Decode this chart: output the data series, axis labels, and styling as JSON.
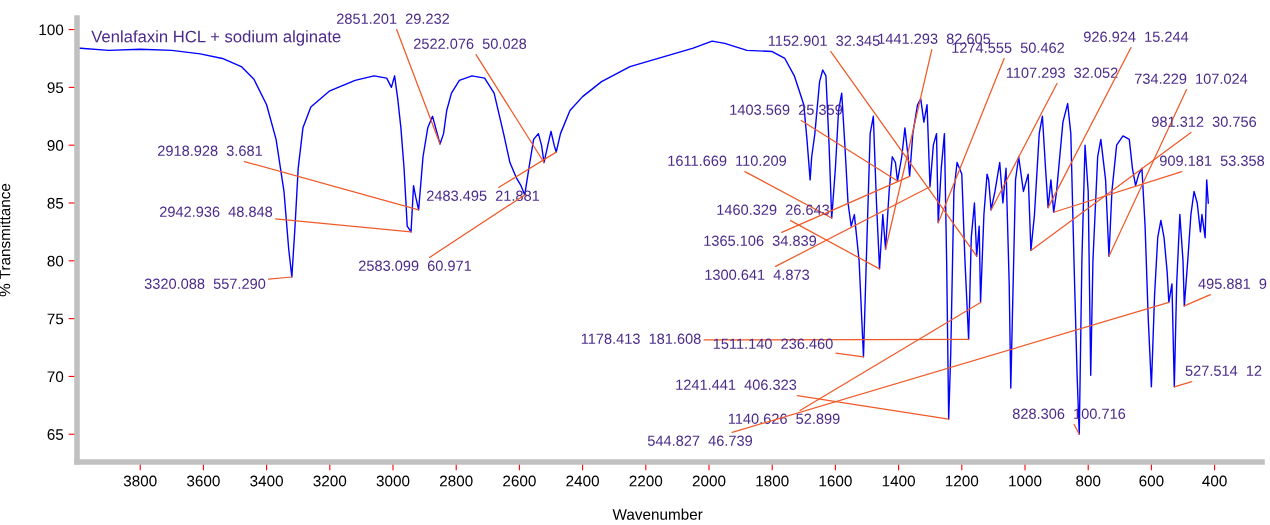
{
  "chart_data": {
    "type": "line",
    "title": "Venlafaxin HCL + sodium alginate",
    "xlabel": "Wavenumber",
    "ylabel": "% Transmittance",
    "xlim": [
      4000,
      250
    ],
    "xticks": [
      3800,
      3600,
      3400,
      3200,
      3000,
      2800,
      2600,
      2400,
      2200,
      2000,
      1800,
      1600,
      1400,
      1200,
      1000,
      800,
      600,
      400
    ],
    "ylim": [
      62.6,
      101
    ],
    "yticks": [
      65,
      70,
      75,
      80,
      85,
      90,
      95,
      100
    ],
    "grid": false,
    "legend": false,
    "marker": "none",
    "line_style": "solid",
    "series": [
      {
        "color": "#0000ff",
        "x": [
          3998,
          3900,
          3800,
          3700,
          3610,
          3540,
          3480,
          3440,
          3400,
          3370,
          3345,
          3330,
          3320.088,
          3310,
          3300,
          3285,
          3260,
          3200,
          3120,
          3060,
          3020,
          3005,
          2995,
          2985,
          2975,
          2965,
          2955,
          2942.936,
          2935,
          2928,
          2918.928,
          2905,
          2890,
          2875,
          2865,
          2851.201,
          2840,
          2830,
          2815,
          2790,
          2750,
          2710,
          2680,
          2650,
          2630,
          2610,
          2595,
          2583.099,
          2570,
          2555,
          2540,
          2530,
          2522.076,
          2510,
          2500,
          2490,
          2483.495,
          2470,
          2440,
          2400,
          2340,
          2250,
          2150,
          2050,
          1990,
          1950,
          1880,
          1800,
          1760,
          1730,
          1700,
          1690,
          1680,
          1675,
          1665,
          1650,
          1640,
          1630,
          1620,
          1611.669,
          1600,
          1590,
          1580,
          1570,
          1560,
          1550,
          1540,
          1525,
          1511.14,
          1500,
          1490,
          1480,
          1470,
          1460.329,
          1450,
          1441.293,
          1430,
          1420,
          1410,
          1403.569,
          1390,
          1380,
          1370,
          1365.106,
          1355,
          1340,
          1330,
          1320,
          1310,
          1300.641,
          1290,
          1280,
          1274.555,
          1265,
          1255,
          1248,
          1241.441,
          1235,
          1225,
          1215,
          1200,
          1190,
          1178.413,
          1170,
          1160,
          1152.901,
          1145,
          1140.626,
          1130,
          1120,
          1115,
          1107.293,
          1095,
          1080,
          1070,
          1060,
          1050,
          1045,
          1040,
          1030,
          1020,
          1005,
          990,
          981.312,
          970,
          955,
          945,
          935,
          926.924,
          918,
          909.181,
          900,
          880,
          865,
          855,
          845,
          835,
          828.306,
          820,
          810,
          800,
          792,
          785,
          770,
          760,
          745,
          734.229,
          725,
          710,
          690,
          670,
          660,
          650,
          640,
          630,
          620,
          610,
          600,
          590,
          580,
          570,
          560,
          550,
          544.827,
          535,
          527.514,
          520,
          510,
          500,
          495.881,
          485,
          475,
          465,
          455,
          445,
          440,
          430,
          425,
          420
        ],
        "values": [
          98.4,
          98.2,
          98.3,
          98.2,
          97.9,
          97.5,
          96.8,
          95.7,
          93.5,
          90.5,
          86,
          81,
          78.6,
          83,
          88,
          91.5,
          93.3,
          94.7,
          95.6,
          96.0,
          95.8,
          95.0,
          96.0,
          94,
          91.5,
          88,
          83,
          82.5,
          86.5,
          85.5,
          84.4,
          89,
          91.5,
          92.5,
          91.5,
          90.1,
          91,
          93,
          94.5,
          95.6,
          96.0,
          95.8,
          94.5,
          91,
          88.5,
          87.2,
          86.5,
          85.7,
          88,
          90.5,
          91,
          90,
          88.5,
          90,
          91.2,
          90,
          89.4,
          91,
          93,
          94.2,
          95.5,
          96.8,
          97.6,
          98.4,
          99.0,
          98.8,
          98.2,
          98.1,
          97.5,
          96.0,
          93.5,
          90.5,
          87,
          89,
          91,
          95.5,
          96.5,
          96,
          90,
          83.7,
          88,
          93,
          94.5,
          90,
          85,
          83,
          84,
          80,
          71.7,
          82,
          91,
          92.5,
          85,
          79.3,
          84,
          81.0,
          86,
          89,
          88.5,
          86.9,
          89,
          91.5,
          89,
          87.3,
          91,
          93.5,
          94,
          92,
          93.5,
          86.4,
          90,
          91,
          83.3,
          88,
          91,
          80,
          66.3,
          72,
          86,
          88.5,
          87.5,
          80,
          73.2,
          82,
          85,
          80.4,
          83,
          76.4,
          84,
          87.5,
          87,
          84.4,
          86,
          88.5,
          85,
          88,
          78,
          69.0,
          75,
          87,
          89,
          86,
          87.5,
          80.9,
          84,
          91,
          92.5,
          88,
          84.6,
          87,
          84.2,
          86,
          92,
          93.6,
          91,
          80,
          70,
          65.0,
          80,
          90,
          86,
          70.1,
          80,
          89,
          90.5,
          87,
          80.4,
          86,
          90,
          90.8,
          90.5,
          88,
          86.5,
          87.5,
          88,
          83,
          75,
          69.1,
          77,
          82,
          83.5,
          82,
          79,
          76.4,
          78,
          69.1,
          78,
          84,
          80,
          76.1,
          80,
          84,
          86,
          85,
          82.5,
          84,
          82,
          87,
          85
        ]
      }
    ],
    "annotations": [
      {
        "text": "3320.088  557.290",
        "x": 3320.088,
        "y": 78.6
      },
      {
        "text": "2942.936  48.848",
        "x": 2942.936,
        "y": 82.5
      },
      {
        "text": "2918.928  3.681",
        "x": 2918.928,
        "y": 84.4
      },
      {
        "text": "2851.201  29.232",
        "x": 2851.201,
        "y": 90.1
      },
      {
        "text": "2522.076  50.028",
        "x": 2522.076,
        "y": 88.5
      },
      {
        "text": "2483.495  21.881",
        "x": 2483.495,
        "y": 89.4
      },
      {
        "text": "2583.099  60.971",
        "x": 2583.099,
        "y": 85.7
      },
      {
        "text": "1611.669  110.209",
        "x": 1611.669,
        "y": 83.7
      },
      {
        "text": "1460.329  26.643",
        "x": 1460.329,
        "y": 79.3
      },
      {
        "text": "1365.106  34.839",
        "x": 1365.106,
        "y": 87.3
      },
      {
        "text": "1300.641  4.873",
        "x": 1300.641,
        "y": 86.4
      },
      {
        "text": "1403.569  25.359",
        "x": 1403.569,
        "y": 86.9
      },
      {
        "text": "1152.901  32.345",
        "x": 1152.901,
        "y": 80.4
      },
      {
        "text": "1441.293  82.605",
        "x": 1441.293,
        "y": 81.0
      },
      {
        "text": "1274.555  50.462",
        "x": 1274.555,
        "y": 83.3
      },
      {
        "text": "1107.293  32.052",
        "x": 1107.293,
        "y": 84.4
      },
      {
        "text": "926.924  15.244",
        "x": 926.924,
        "y": 84.6
      },
      {
        "text": "734.229  107.024",
        "x": 734.229,
        "y": 80.4
      },
      {
        "text": "981.312  30.756",
        "x": 981.312,
        "y": 80.9
      },
      {
        "text": "909.181  53.358",
        "x": 909.181,
        "y": 84.2
      },
      {
        "text": "495.881  9",
        "x": 495.881,
        "y": 76.1
      },
      {
        "text": "1178.413  181.608",
        "x": 1178.413,
        "y": 73.2
      },
      {
        "text": "1511.140  236.460",
        "x": 1511.14,
        "y": 71.7
      },
      {
        "text": "1241.441  406.323",
        "x": 1241.441,
        "y": 66.3
      },
      {
        "text": "1140.626  52.899",
        "x": 1140.626,
        "y": 76.4
      },
      {
        "text": "544.827  46.739",
        "x": 544.827,
        "y": 76.4
      },
      {
        "text": "828.306  100.716",
        "x": 828.306,
        "y": 65.0
      },
      {
        "text": "527.514  12",
        "x": 527.514,
        "y": 69.1
      }
    ]
  }
}
